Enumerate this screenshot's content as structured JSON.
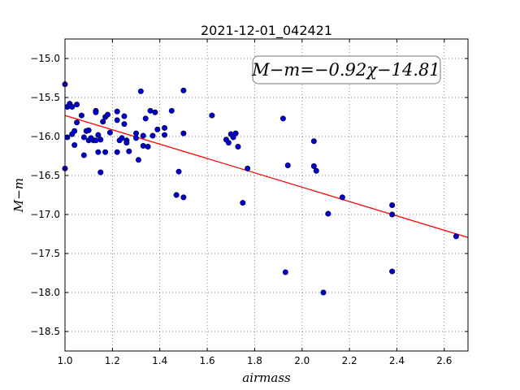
{
  "chart_data": {
    "type": "scatter",
    "title": "2021-12-01_042421",
    "xlabel": "airmass",
    "ylabel": "M−m",
    "xlim": [
      1.0,
      2.7
    ],
    "ylim": [
      -18.75,
      -14.75
    ],
    "y_inverted": true,
    "grid": true,
    "x_ticks": [
      "1.0",
      "1.2",
      "1.4",
      "1.6",
      "1.8",
      "2.0",
      "2.2",
      "2.4",
      "2.6"
    ],
    "x_tick_values": [
      1.0,
      1.2,
      1.4,
      1.6,
      1.8,
      2.0,
      2.2,
      2.4,
      2.6
    ],
    "y_ticks": [
      "−15.0",
      "−15.5",
      "−16.0",
      "−16.5",
      "−17.0",
      "−17.5",
      "−18.0",
      "−18.5"
    ],
    "y_tick_values": [
      -15.0,
      -15.5,
      -16.0,
      -16.5,
      -17.0,
      -17.5,
      -18.0,
      -18.5
    ],
    "annotation": "M−m=−0.92χ−14.81",
    "annotation_position": "top-right",
    "fit_line": {
      "slope": -0.92,
      "intercept": -14.81,
      "color": "#ff0000"
    },
    "point_color": "#0000cc",
    "points": [
      [
        1.0,
        -15.33
      ],
      [
        1.0,
        -16.41
      ],
      [
        1.01,
        -15.62
      ],
      [
        1.01,
        -16.01
      ],
      [
        1.02,
        -15.58
      ],
      [
        1.03,
        -15.62
      ],
      [
        1.03,
        -15.97
      ],
      [
        1.04,
        -15.93
      ],
      [
        1.04,
        -16.11
      ],
      [
        1.05,
        -15.59
      ],
      [
        1.05,
        -15.82
      ],
      [
        1.07,
        -15.73
      ],
      [
        1.08,
        -16.01
      ],
      [
        1.08,
        -16.24
      ],
      [
        1.09,
        -15.93
      ],
      [
        1.1,
        -15.92
      ],
      [
        1.1,
        -16.05
      ],
      [
        1.11,
        -16.02
      ],
      [
        1.12,
        -16.05
      ],
      [
        1.13,
        -15.67
      ],
      [
        1.13,
        -15.69
      ],
      [
        1.13,
        -16.05
      ],
      [
        1.14,
        -15.98
      ],
      [
        1.14,
        -16.2
      ],
      [
        1.15,
        -16.46
      ],
      [
        1.15,
        -16.04
      ],
      [
        1.16,
        -15.81
      ],
      [
        1.17,
        -15.75
      ],
      [
        1.17,
        -16.2
      ],
      [
        1.18,
        -15.72
      ],
      [
        1.19,
        -15.95
      ],
      [
        1.22,
        -15.68
      ],
      [
        1.22,
        -15.79
      ],
      [
        1.22,
        -16.2
      ],
      [
        1.23,
        -16.05
      ],
      [
        1.24,
        -16.02
      ],
      [
        1.25,
        -15.74
      ],
      [
        1.25,
        -15.84
      ],
      [
        1.26,
        -16.05
      ],
      [
        1.26,
        -16.08
      ],
      [
        1.27,
        -16.19
      ],
      [
        1.3,
        -15.96
      ],
      [
        1.3,
        -16.02
      ],
      [
        1.31,
        -16.3
      ],
      [
        1.32,
        -15.42
      ],
      [
        1.33,
        -15.99
      ],
      [
        1.33,
        -16.12
      ],
      [
        1.34,
        -15.77
      ],
      [
        1.35,
        -16.13
      ],
      [
        1.36,
        -15.67
      ],
      [
        1.37,
        -15.99
      ],
      [
        1.38,
        -15.69
      ],
      [
        1.39,
        -15.91
      ],
      [
        1.42,
        -15.89
      ],
      [
        1.42,
        -15.98
      ],
      [
        1.45,
        -15.67
      ],
      [
        1.47,
        -16.75
      ],
      [
        1.48,
        -16.45
      ],
      [
        1.5,
        -15.41
      ],
      [
        1.5,
        -15.96
      ],
      [
        1.5,
        -16.78
      ],
      [
        1.62,
        -15.73
      ],
      [
        1.68,
        -16.04
      ],
      [
        1.69,
        -16.08
      ],
      [
        1.7,
        -15.97
      ],
      [
        1.71,
        -16.01
      ],
      [
        1.72,
        -15.96
      ],
      [
        1.73,
        -16.13
      ],
      [
        1.75,
        -16.85
      ],
      [
        1.77,
        -16.41
      ],
      [
        1.92,
        -15.77
      ],
      [
        1.93,
        -17.74
      ],
      [
        1.94,
        -16.37
      ],
      [
        2.05,
        -16.38
      ],
      [
        2.05,
        -16.06
      ],
      [
        2.06,
        -16.44
      ],
      [
        2.09,
        -18.0
      ],
      [
        2.11,
        -16.99
      ],
      [
        2.17,
        -16.78
      ],
      [
        2.38,
        -16.88
      ],
      [
        2.38,
        -17.0
      ],
      [
        2.38,
        -17.73
      ],
      [
        2.65,
        -17.28
      ]
    ]
  }
}
